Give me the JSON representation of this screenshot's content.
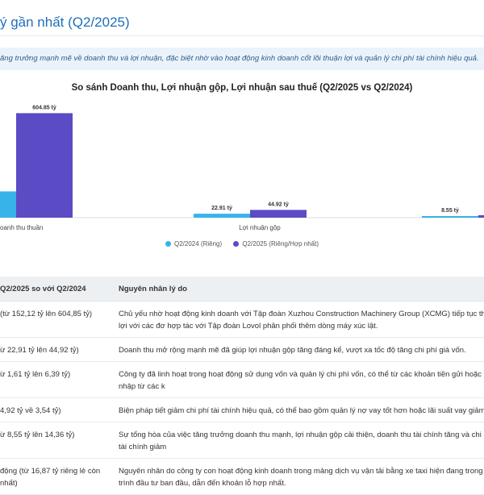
{
  "header": {
    "title": "ý gần nhất (Q2/2025)"
  },
  "banner": {
    "text": "ăng trưởng mạnh mẽ về doanh thu và lợi nhuận, đặc biệt nhờ vào hoạt động kinh doanh cốt lõi thuận lợi và quản lý chi phí tài chính hiệu quả."
  },
  "colors": {
    "accent": "#1f6fb8",
    "series_q2_2024": "#37b3ea",
    "series_q2_2025": "#5b4bc4",
    "banner_bg": "#eaf3fb",
    "table_header_bg": "#edf0f3"
  },
  "chart_data": {
    "type": "bar",
    "title": "So sánh Doanh thu, Lợi nhuận gộp, Lợi nhuận sau thuế (Q2/2025 vs Q2/2024)",
    "categories": [
      "oanh thu thuần",
      "Lợi nhuận gộp",
      "Lợ"
    ],
    "series": [
      {
        "name": "Q2/2024 (Riêng)",
        "values": [
          152.12,
          22.91,
          8.55
        ],
        "labels": [
          "",
          "22.91 tỷ",
          "8.55 tỷ"
        ]
      },
      {
        "name": "Q2/2025 (Riêng/Hợp nhất)",
        "values": [
          604.85,
          44.92,
          14.36
        ],
        "labels": [
          "604.85 tỷ",
          "44.92 tỷ",
          ""
        ]
      }
    ],
    "ylim": [
      0,
      700
    ],
    "grid": false,
    "legend": "bottom"
  },
  "table": {
    "headers": [
      "Q2/2025 so với Q2/2024",
      "Nguyên nhân lý do"
    ],
    "rows": [
      {
        "metric": "(từ 152,12 tỷ lên 604,85 tỷ)",
        "reason": "Chủ yếu nhờ hoạt động kinh doanh với Tập đoàn Xuzhou Construction Machinery Group (XCMG) tiếp tục thuận lợi với các đơ hợp tác với Tập đoàn Lovol phân phối thêm dòng máy xúc lật."
      },
      {
        "metric": "ừ 22,91 tỷ lên 44,92 tỷ)",
        "reason": "Doanh thu mở rộng mạnh mẽ đã giúp lợi nhuận gộp tăng đáng kể, vượt xa tốc độ tăng chi phí giá vốn."
      },
      {
        "metric": "ừ 1,61 tỷ lên 6,39 tỷ)",
        "reason": "Công ty đã linh hoạt trong hoạt động sử dụng vốn và quản lý chi phí vốn, có thể từ các khoản tiền gửi hoặc thu nhập từ các k"
      },
      {
        "metric": "4,92 tỷ về 3,54 tỷ)",
        "reason": "Biện pháp tiết giảm chi phí tài chính hiệu quả, có thể bao gồm quản lý nợ vay tốt hơn hoặc lãi suất vay giảm."
      },
      {
        "metric": "ừ 8,55 tỷ lên 14,36 tỷ)",
        "reason": "Sự tổng hòa của việc tăng trưởng doanh thu mạnh, lợi nhuận gộp cải thiện, doanh thu tài chính tăng và chi phí tài chính giảm"
      },
      {
        "metric": "động (từ 16,87 tỷ riêng lẻ còn nhất)",
        "reason": "Nguyên nhân do công ty con hoạt động kinh doanh trong mảng dịch vụ vận tải bằng xe taxi hiện đang trong quá trình đầu tư ban đầu, dẫn đến khoản lỗ hợp nhất."
      }
    ]
  }
}
